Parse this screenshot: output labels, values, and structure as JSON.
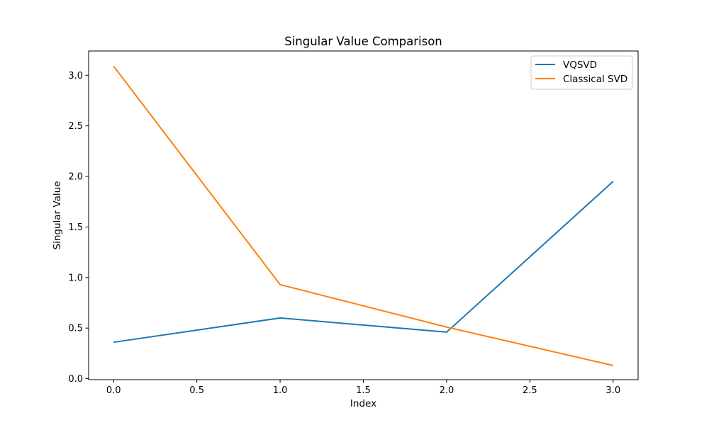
{
  "chart_data": {
    "type": "line",
    "title": "Singular Value Comparison",
    "xlabel": "Index",
    "ylabel": "Singular Value",
    "x": [
      0,
      1,
      2,
      3
    ],
    "xlim": [
      -0.15,
      3.15
    ],
    "ylim": [
      -0.01,
      3.24
    ],
    "xticks": [
      0.0,
      0.5,
      1.0,
      1.5,
      2.0,
      2.5,
      3.0
    ],
    "xtick_labels": [
      "0.0",
      "0.5",
      "1.0",
      "1.5",
      "2.0",
      "2.5",
      "3.0"
    ],
    "yticks": [
      0.0,
      0.5,
      1.0,
      1.5,
      2.0,
      2.5,
      3.0
    ],
    "ytick_labels": [
      "0.0",
      "0.5",
      "1.0",
      "1.5",
      "2.0",
      "2.5",
      "3.0"
    ],
    "grid": false,
    "legend_position": "top-right",
    "series": [
      {
        "name": "VQSVD",
        "color": "#1f77b4",
        "values": [
          0.36,
          0.6,
          0.46,
          1.95
        ]
      },
      {
        "name": "Classical SVD",
        "color": "#ff7f0e",
        "values": [
          3.09,
          0.93,
          0.51,
          0.13
        ]
      }
    ]
  }
}
